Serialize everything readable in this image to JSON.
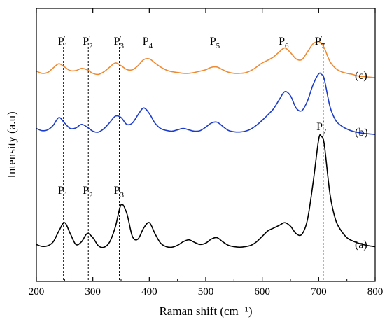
{
  "chart_data": {
    "type": "line",
    "title": "",
    "xlabel": "Raman shift (cm⁻¹)",
    "ylabel": "Intensity (a.u)",
    "xlim": [
      200,
      800
    ],
    "x_ticks": [
      200,
      300,
      400,
      500,
      600,
      700,
      800
    ],
    "y_ticks_shown": false,
    "grid": false,
    "series": [
      {
        "name": "(c)",
        "color": "#f08a32",
        "x": [
          200,
          210,
          220,
          230,
          240,
          250,
          260,
          270,
          280,
          290,
          300,
          310,
          320,
          330,
          340,
          350,
          360,
          370,
          380,
          390,
          400,
          410,
          420,
          430,
          440,
          450,
          460,
          470,
          480,
          490,
          500,
          510,
          520,
          530,
          540,
          550,
          560,
          570,
          580,
          590,
          600,
          610,
          620,
          630,
          640,
          650,
          660,
          670,
          680,
          690,
          700,
          705,
          710,
          720,
          730,
          740,
          750,
          760,
          770,
          780,
          790,
          800
        ],
        "values": [
          0.77,
          0.762,
          0.765,
          0.782,
          0.797,
          0.785,
          0.772,
          0.772,
          0.78,
          0.775,
          0.762,
          0.758,
          0.768,
          0.785,
          0.8,
          0.79,
          0.776,
          0.775,
          0.79,
          0.812,
          0.815,
          0.8,
          0.785,
          0.774,
          0.768,
          0.765,
          0.762,
          0.762,
          0.765,
          0.77,
          0.775,
          0.784,
          0.785,
          0.775,
          0.766,
          0.762,
          0.762,
          0.764,
          0.772,
          0.785,
          0.8,
          0.81,
          0.822,
          0.84,
          0.855,
          0.838,
          0.815,
          0.812,
          0.84,
          0.87,
          0.878,
          0.87,
          0.855,
          0.805,
          0.78,
          0.768,
          0.762,
          0.758,
          0.752,
          0.75,
          0.748,
          0.746
        ]
      },
      {
        "name": "(b)",
        "color": "#1c3ccc",
        "x": [
          200,
          210,
          220,
          230,
          240,
          250,
          260,
          270,
          280,
          290,
          300,
          310,
          320,
          330,
          340,
          350,
          360,
          370,
          380,
          390,
          400,
          410,
          420,
          430,
          440,
          450,
          460,
          470,
          480,
          490,
          500,
          510,
          520,
          530,
          540,
          550,
          560,
          570,
          580,
          590,
          600,
          610,
          620,
          630,
          640,
          650,
          660,
          670,
          680,
          690,
          700,
          705,
          710,
          720,
          730,
          740,
          750,
          760,
          770,
          780,
          790,
          800
        ],
        "values": [
          0.56,
          0.552,
          0.555,
          0.572,
          0.6,
          0.58,
          0.56,
          0.562,
          0.575,
          0.565,
          0.55,
          0.547,
          0.56,
          0.582,
          0.605,
          0.6,
          0.575,
          0.58,
          0.61,
          0.635,
          0.615,
          0.58,
          0.56,
          0.553,
          0.55,
          0.555,
          0.56,
          0.555,
          0.55,
          0.552,
          0.565,
          0.58,
          0.583,
          0.568,
          0.553,
          0.548,
          0.547,
          0.55,
          0.558,
          0.572,
          0.59,
          0.61,
          0.632,
          0.665,
          0.695,
          0.68,
          0.635,
          0.625,
          0.66,
          0.72,
          0.76,
          0.758,
          0.74,
          0.64,
          0.59,
          0.57,
          0.558,
          0.55,
          0.545,
          0.542,
          0.54,
          0.538
        ]
      },
      {
        "name": "(a)",
        "color": "#000000",
        "x": [
          200,
          210,
          220,
          230,
          240,
          250,
          260,
          270,
          280,
          290,
          300,
          310,
          320,
          330,
          340,
          350,
          360,
          370,
          380,
          390,
          400,
          410,
          420,
          430,
          440,
          450,
          460,
          470,
          480,
          490,
          500,
          510,
          520,
          530,
          540,
          550,
          560,
          570,
          580,
          590,
          600,
          610,
          620,
          630,
          640,
          650,
          660,
          670,
          680,
          690,
          700,
          705,
          710,
          720,
          730,
          740,
          750,
          760,
          770,
          780,
          790,
          800
        ],
        "values": [
          0.135,
          0.128,
          0.13,
          0.145,
          0.185,
          0.215,
          0.175,
          0.135,
          0.145,
          0.175,
          0.16,
          0.13,
          0.125,
          0.145,
          0.2,
          0.28,
          0.25,
          0.165,
          0.155,
          0.195,
          0.215,
          0.175,
          0.14,
          0.127,
          0.125,
          0.132,
          0.145,
          0.152,
          0.143,
          0.135,
          0.14,
          0.155,
          0.16,
          0.145,
          0.132,
          0.127,
          0.125,
          0.127,
          0.132,
          0.145,
          0.165,
          0.185,
          0.195,
          0.205,
          0.215,
          0.202,
          0.175,
          0.172,
          0.225,
          0.36,
          0.52,
          0.53,
          0.5,
          0.32,
          0.225,
          0.185,
          0.16,
          0.148,
          0.14,
          0.134,
          0.13,
          0.127
        ]
      }
    ],
    "reference_lines": {
      "style": "dashed",
      "x": [
        248,
        292,
        347,
        708
      ]
    },
    "peak_labels_top": [
      "P'1",
      "P'2",
      "P'3",
      "P4",
      "P5",
      "P6",
      "P'7"
    ],
    "peak_labels_bottom": [
      "P1",
      "P2",
      "P3"
    ],
    "peak_label_P7": "P'7"
  },
  "peaks_top": [
    {
      "base": "P",
      "prime": "'",
      "sub": "1",
      "x": 248
    },
    {
      "base": "P",
      "prime": "'",
      "sub": "2",
      "x": 292
    },
    {
      "base": "P",
      "prime": "'",
      "sub": "3",
      "x": 347
    },
    {
      "base": "P",
      "prime": "",
      "sub": "4",
      "x": 398
    },
    {
      "base": "P",
      "prime": "",
      "sub": "5",
      "x": 517
    },
    {
      "base": "P",
      "prime": "",
      "sub": "6",
      "x": 639
    },
    {
      "base": "P",
      "prime": "'",
      "sub": "7",
      "x": 703
    }
  ],
  "peaks_bottom": [
    {
      "base": "P",
      "prime": "",
      "sub": "1",
      "x": 248
    },
    {
      "base": "P",
      "prime": "",
      "sub": "2",
      "x": 292
    },
    {
      "base": "P",
      "prime": "",
      "sub": "3",
      "x": 347
    }
  ],
  "peak_p7": {
    "base": "P",
    "prime": "'",
    "sub": "7",
    "x": 706
  },
  "curve_tags": [
    {
      "text": "(c)",
      "series": "(c)"
    },
    {
      "text": "(b)",
      "series": "(b)"
    },
    {
      "text": "(a)",
      "series": "(a)"
    }
  ]
}
